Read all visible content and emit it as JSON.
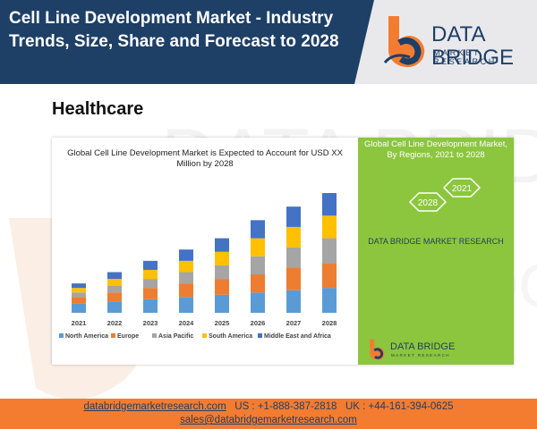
{
  "header": {
    "title": "Cell Line Development Market - Industry Trends, Size, Share and Forecast to 2028",
    "brand_name": "DATA BRIDGE",
    "brand_sub": "MARKET RESEARCH"
  },
  "section": {
    "label": "Healthcare"
  },
  "right_panel": {
    "title": "Global Cell Line Development Market, By Regions, 2021 to 2028",
    "hex_left": "2028",
    "hex_right": "2021",
    "brand": "DATA BRIDGE MARKET RESEARCH",
    "bottom_brand_name": "DATA BRIDGE",
    "bottom_brand_sub": "MARKET RESEARCH"
  },
  "footer": {
    "website": "databridgemarketresearch.com",
    "us_phone": "US : +1-888-387-2818",
    "uk_phone": "UK : +44-161-394-0625",
    "email": "sales@databridgemarketresearch.com"
  },
  "colors": {
    "header_bg": "#1e3f66",
    "accent_orange": "#f47c30",
    "panel_green": "#8cc63e"
  },
  "chart_data": {
    "type": "bar",
    "stacked": true,
    "title": "Global Cell Line Development Market is Expected to Account for USD XX Million by 2028",
    "xlabel": "",
    "ylabel": "",
    "grid": false,
    "legend_position": "bottom",
    "categories": [
      "2021",
      "2022",
      "2023",
      "2024",
      "2025",
      "2026",
      "2027",
      "2028"
    ],
    "series": [
      {
        "name": "North America",
        "color": "#5b9bd5",
        "values": [
          4,
          5,
          6,
          7,
          8,
          9,
          10,
          11
        ]
      },
      {
        "name": "Europe",
        "color": "#ed7d31",
        "values": [
          3,
          4,
          5,
          6,
          7,
          8,
          10,
          11
        ]
      },
      {
        "name": "Asia Pacific",
        "color": "#a5a5a5",
        "values": [
          2,
          3,
          4,
          5,
          6,
          8,
          9,
          11
        ]
      },
      {
        "name": "South America",
        "color": "#ffc000",
        "values": [
          2,
          3,
          4,
          5,
          6,
          8,
          9,
          10
        ]
      },
      {
        "name": "Middle East and Africa",
        "color": "#4472c4",
        "values": [
          2,
          3,
          4,
          5,
          6,
          8,
          9,
          10
        ]
      }
    ]
  }
}
